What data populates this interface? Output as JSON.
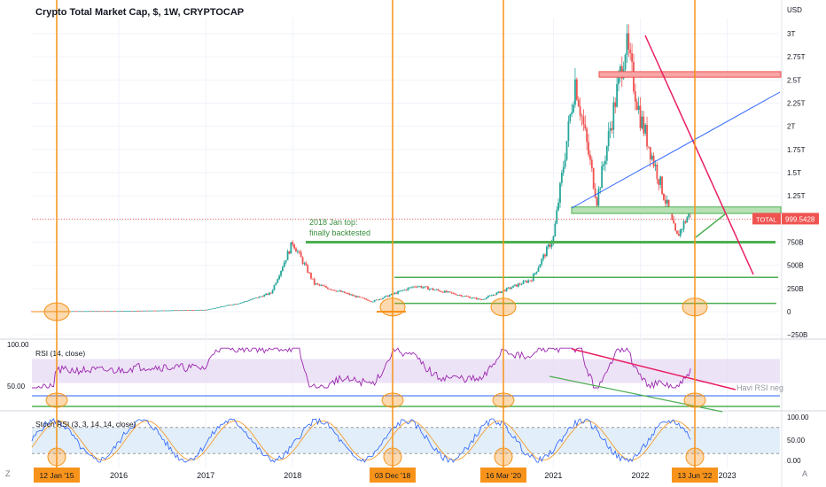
{
  "header": {
    "title": "Crypto Total Market Cap, $, 1W, CRYPTOCAP"
  },
  "colors": {
    "up": "#26a69a",
    "down": "#ef5350",
    "vline": "#f7931a",
    "rsi": "#9c27b0",
    "green": "#4caf50",
    "red": "#e91e63",
    "blue": "#2962ff",
    "stochK": "#2962ff",
    "stochD": "#f7931a"
  },
  "chart_data": [
    {
      "type": "line",
      "title": "Crypto Total Market Cap, $, 1W, CRYPTOCAP",
      "yunit": "USD",
      "y_ticks": [
        "3T",
        "2.75T",
        "2.5T",
        "2.25T",
        "2T",
        "1.75T",
        "1.5T",
        "1.25T",
        "1T",
        "750B",
        "500B",
        "250B",
        "0",
        "−250B"
      ],
      "x_ticks": [
        "2016",
        "2017",
        "2018",
        "2021",
        "2022",
        "2023"
      ],
      "series": [
        {
          "x": [
            "2015-01",
            "2016-01",
            "2017-01",
            "2017-06",
            "2017-10",
            "2018-01",
            "2018-04",
            "2018-12",
            "2019-06",
            "2020-03",
            "2020-10",
            "2021-01",
            "2021-04",
            "2021-07",
            "2021-11",
            "2022-01",
            "2022-06",
            "2022-08"
          ],
          "values": [
            0.005,
            0.007,
            0.02,
            0.1,
            0.2,
            0.75,
            0.3,
            0.11,
            0.28,
            0.13,
            0.35,
            0.8,
            2.5,
            1.2,
            2.9,
            2.1,
            0.8,
            1.1
          ]
        }
      ],
      "last_label": "TOTAL",
      "last_value": "999.5428",
      "annotation": "2018 Jan top:\nfinally backtested",
      "dates": [
        "12 Jan '15",
        "03 Dec '18",
        "16 Mar '20",
        "13 Jun '22"
      ]
    },
    {
      "type": "line",
      "title": "RSI (14, close)",
      "y_ticks": [
        "100.00",
        "50.00"
      ],
      "annotation": "Havi RSI neg"
    },
    {
      "type": "line",
      "title": "Stoch RSI (3, 3, 14, 14, close)",
      "y_ticks": [
        "100.00",
        "50.00",
        "0.00"
      ]
    }
  ]
}
